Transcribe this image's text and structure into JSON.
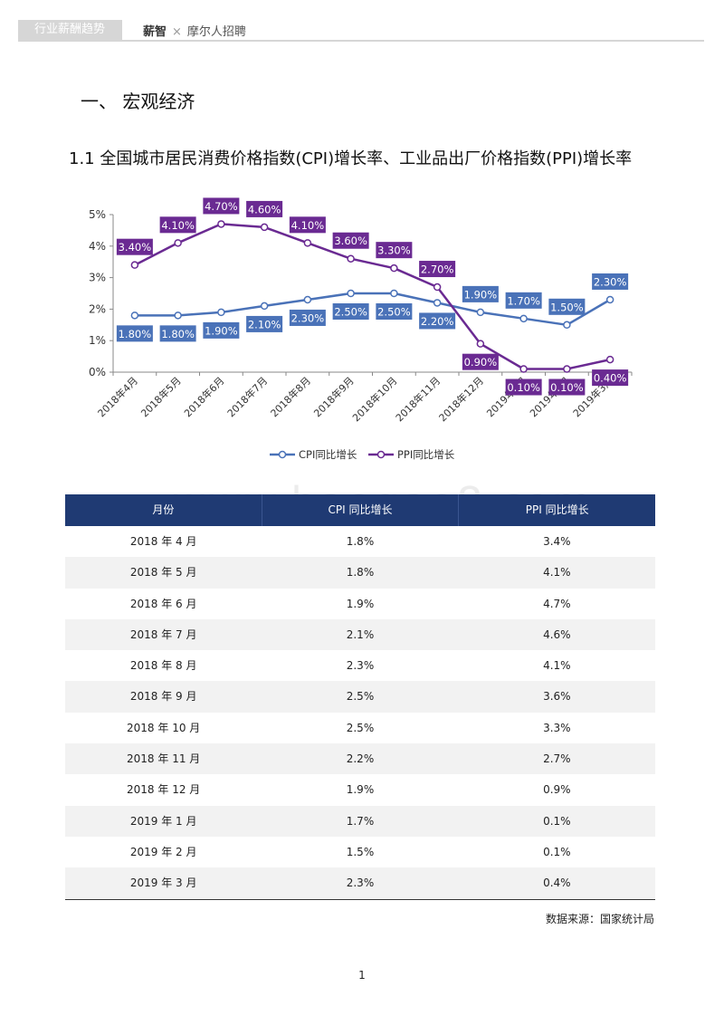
{
  "header": {
    "tab_label": "行业薪酬趋势",
    "brand_primary": "薪智",
    "brand_separator": "×",
    "brand_secondary": "摩尔人招聘"
  },
  "section_title": "一、 宏观经济",
  "chart_title": "1.1 全国城市居民消费价格指数(CPI)增长率、工业品出厂价格指数(PPI)增长率",
  "chart_data": {
    "type": "line",
    "x": [
      "2018年4月",
      "2018年5月",
      "2018年6月",
      "2018年7月",
      "2018年8月",
      "2018年9月",
      "2018年10月",
      "2018年11月",
      "2018年12月",
      "2019年1月",
      "2019年2月",
      "2019年3月"
    ],
    "ylim": [
      0,
      5
    ],
    "yticks": [
      "0%",
      "1%",
      "2%",
      "3%",
      "4%",
      "5%"
    ],
    "series": [
      {
        "name": "CPI同比增长",
        "values": [
          1.8,
          1.8,
          1.9,
          2.1,
          2.3,
          2.5,
          2.5,
          2.2,
          1.9,
          1.7,
          1.5,
          2.3
        ],
        "labels": [
          "1.80%",
          "1.80%",
          "1.90%",
          "2.10%",
          "2.30%",
          "2.50%",
          "2.50%",
          "2.20%",
          "1.90%",
          "1.70%",
          "1.50%",
          "2.30%"
        ],
        "color": "#4a72b8"
      },
      {
        "name": "PPI同比增长",
        "values": [
          3.4,
          4.1,
          4.7,
          4.6,
          4.1,
          3.6,
          3.3,
          2.7,
          0.9,
          0.1,
          0.1,
          0.4
        ],
        "labels": [
          "3.40%",
          "4.10%",
          "4.70%",
          "4.60%",
          "4.10%",
          "3.60%",
          "3.30%",
          "2.70%",
          "0.90%",
          "0.10%",
          "0.10%",
          "0.40%"
        ],
        "color": "#6a2a92"
      }
    ],
    "legend": "bottom",
    "grid": false
  },
  "table": {
    "headers": [
      "月份",
      "CPI 同比增长",
      "PPI 同比增长"
    ],
    "rows": [
      [
        "2018 年 4 月",
        "1.8%",
        "3.4%"
      ],
      [
        "2018 年 5 月",
        "1.8%",
        "4.1%"
      ],
      [
        "2018 年 6 月",
        "1.9%",
        "4.7%"
      ],
      [
        "2018 年 7 月",
        "2.1%",
        "4.6%"
      ],
      [
        "2018 年 8 月",
        "2.3%",
        "4.1%"
      ],
      [
        "2018 年 9 月",
        "2.5%",
        "3.6%"
      ],
      [
        "2018 年 10 月",
        "2.5%",
        "3.3%"
      ],
      [
        "2018 年 11 月",
        "2.2%",
        "2.7%"
      ],
      [
        "2018 年 12 月",
        "1.9%",
        "0.9%"
      ],
      [
        "2019 年 1 月",
        "1.7%",
        "0.1%"
      ],
      [
        "2019 年 2 月",
        "1.5%",
        "0.1%"
      ],
      [
        "2019 年 3 月",
        "2.3%",
        "0.4%"
      ]
    ]
  },
  "source": "数据来源：国家统计局",
  "page_number": "1",
  "watermark": "www.baogao8.com"
}
